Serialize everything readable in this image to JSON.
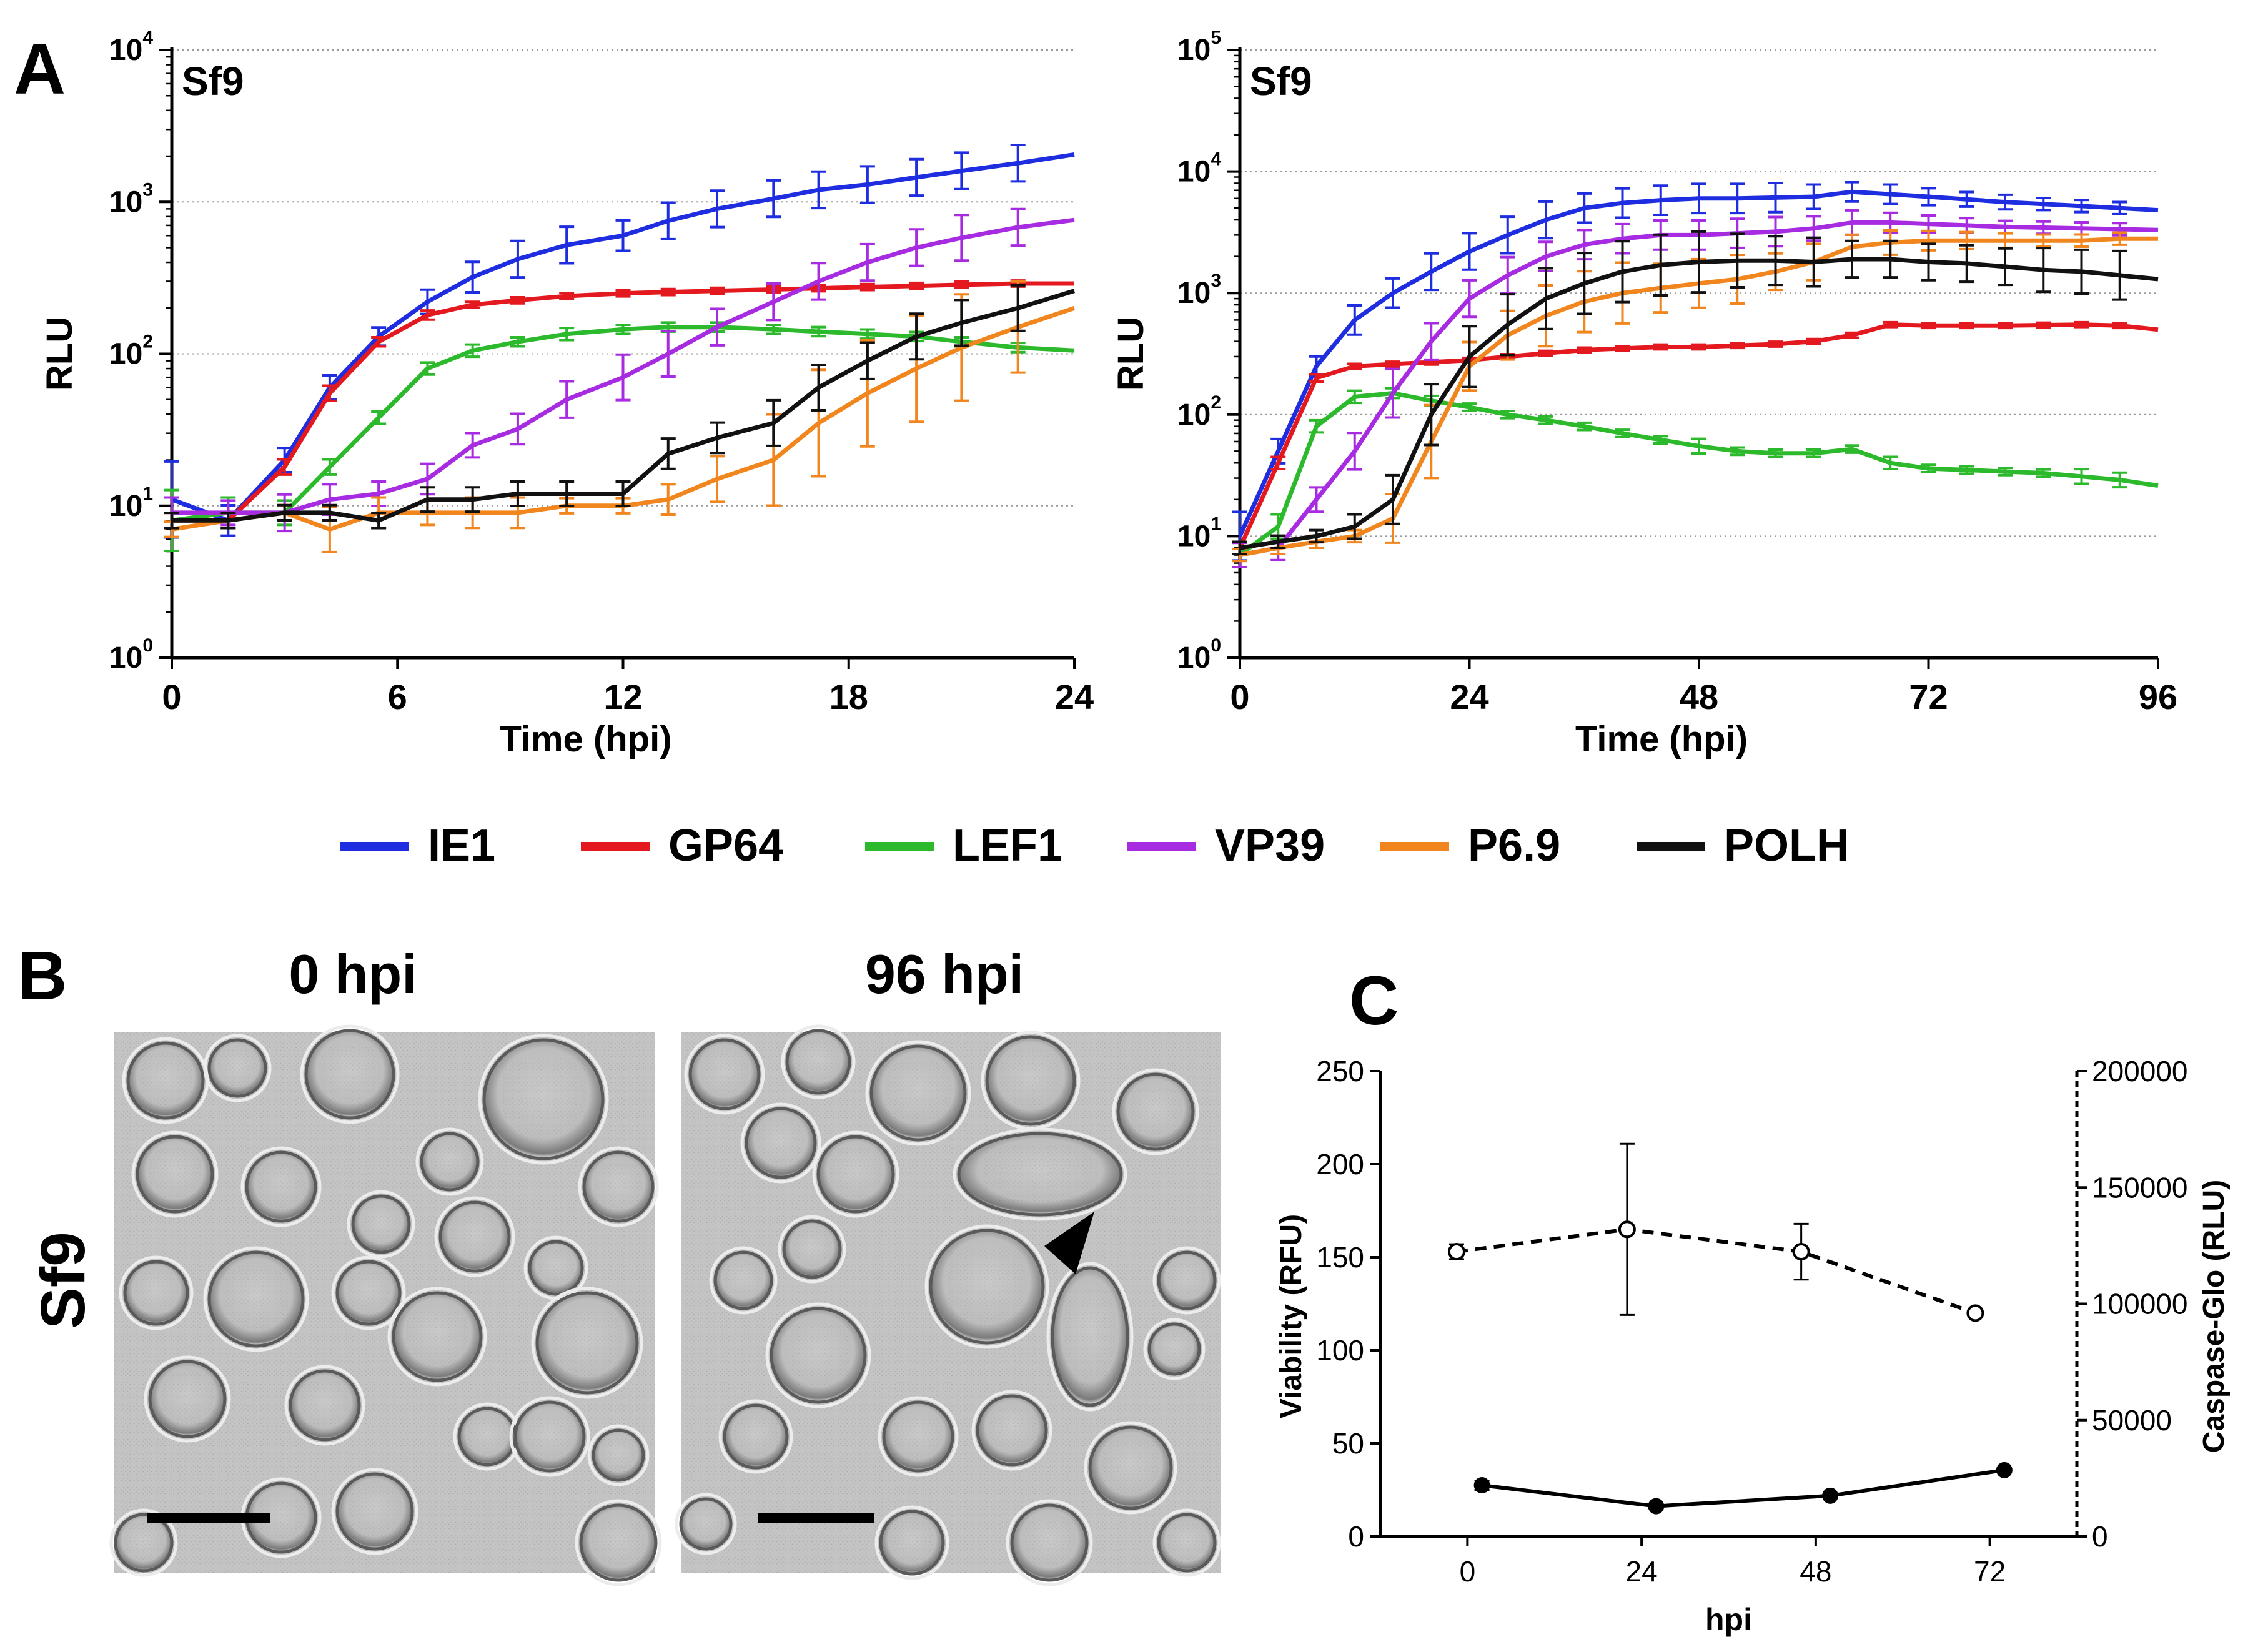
{
  "panel_labels": {
    "a": "A",
    "b": "B",
    "c": "C"
  },
  "legend": {
    "items": [
      {
        "name": "IE1",
        "color": "#1f2de0"
      },
      {
        "name": "GP64",
        "color": "#e3191f"
      },
      {
        "name": "LEF1",
        "color": "#2cba2c"
      },
      {
        "name": "VP39",
        "color": "#a72be0"
      },
      {
        "name": "P6.9",
        "color": "#f2861e"
      },
      {
        "name": "POLH",
        "color": "#111111"
      }
    ]
  },
  "panel_b": {
    "cell_line": "Sf9",
    "images": [
      {
        "label": "0 hpi"
      },
      {
        "label": "96 hpi"
      }
    ]
  },
  "chart_data": [
    {
      "id": "A-left",
      "type": "line",
      "title": "Sf9",
      "xlabel": "Time (hpi)",
      "ylabel": "RLU",
      "xlim": [
        0,
        24
      ],
      "ylim_log10": [
        0,
        4
      ],
      "yscale": "log",
      "xticks": [
        0,
        6,
        12,
        18,
        24
      ],
      "yticks": [
        {
          "base": "10",
          "exp": "0"
        },
        {
          "base": "10",
          "exp": "1"
        },
        {
          "base": "10",
          "exp": "2"
        },
        {
          "base": "10",
          "exp": "3"
        },
        {
          "base": "10",
          "exp": "4"
        }
      ],
      "grid": "horizontal-dotted",
      "x": [
        0,
        1.5,
        3,
        4.2,
        5.5,
        6.8,
        8,
        9.2,
        10.5,
        12,
        13.2,
        14.5,
        16,
        17.2,
        18.5,
        19.8,
        21,
        22.5,
        24
      ],
      "series": [
        {
          "name": "IE1",
          "values": [
            11,
            8,
            20,
            60,
            130,
            220,
            320,
            420,
            520,
            600,
            750,
            900,
            1050,
            1200,
            1300,
            1450,
            1600,
            1800,
            2050
          ],
          "err": [
            0.25,
            0.1,
            0.08,
            0.08,
            0.06,
            0.08,
            0.1,
            0.12,
            0.12,
            0.1,
            0.12,
            0.12,
            0.12,
            0.12,
            0.12,
            0.12,
            0.12,
            0.12,
            0
          ]
        },
        {
          "name": "GP64",
          "values": [
            8,
            8,
            18,
            55,
            120,
            180,
            210,
            225,
            240,
            250,
            255,
            260,
            265,
            270,
            275,
            280,
            285,
            290,
            290
          ],
          "err": [
            0.05,
            0.05,
            0.05,
            0.05,
            0.03,
            0.03,
            0.02,
            0.02,
            0.02,
            0.02,
            0.02,
            0.02,
            0.02,
            0.02,
            0.02,
            0.02,
            0.02,
            0.02,
            0
          ]
        },
        {
          "name": "LEF1",
          "values": [
            8,
            9,
            9,
            18,
            38,
            80,
            105,
            120,
            135,
            145,
            150,
            150,
            145,
            140,
            135,
            130,
            120,
            110,
            105
          ],
          "err": [
            0.2,
            0.1,
            0.08,
            0.05,
            0.04,
            0.04,
            0.04,
            0.03,
            0.04,
            0.03,
            0.03,
            0.03,
            0.03,
            0.03,
            0.03,
            0.03,
            0.03,
            0.03,
            0
          ]
        },
        {
          "name": "VP39",
          "values": [
            9,
            9,
            9,
            11,
            12,
            15,
            25,
            32,
            50,
            70,
            100,
            150,
            220,
            300,
            400,
            500,
            580,
            680,
            760
          ],
          "err": [
            0.1,
            0.08,
            0.12,
            0.1,
            0.08,
            0.1,
            0.08,
            0.1,
            0.12,
            0.15,
            0.15,
            0.12,
            0.12,
            0.12,
            0.12,
            0.12,
            0.15,
            0.12,
            0
          ]
        },
        {
          "name": "P6.9",
          "values": [
            7,
            8,
            9,
            7,
            9,
            9,
            9,
            9,
            10,
            10,
            11,
            15,
            20,
            35,
            55,
            80,
            110,
            150,
            200
          ],
          "err": [
            0.05,
            0.05,
            0.05,
            0.15,
            0.1,
            0.08,
            0.1,
            0.1,
            0.05,
            0.05,
            0.1,
            0.15,
            0.3,
            0.35,
            0.35,
            0.35,
            0.35,
            0.3,
            0
          ]
        },
        {
          "name": "POLH",
          "values": [
            8,
            8,
            9,
            9,
            8,
            11,
            11,
            12,
            12,
            12,
            22,
            28,
            35,
            60,
            90,
            130,
            160,
            200,
            260
          ],
          "err": [
            0.05,
            0.05,
            0.05,
            0.05,
            0.05,
            0.08,
            0.08,
            0.08,
            0.08,
            0.08,
            0.1,
            0.1,
            0.15,
            0.15,
            0.12,
            0.15,
            0.15,
            0.15,
            0
          ]
        }
      ]
    },
    {
      "id": "A-right",
      "type": "line",
      "title": "Sf9",
      "xlabel": "Time (hpi)",
      "ylabel": "RLU",
      "xlim": [
        0,
        96
      ],
      "ylim_log10": [
        0,
        5
      ],
      "yscale": "log",
      "xticks": [
        0,
        24,
        48,
        72,
        96
      ],
      "yticks": [
        {
          "base": "10",
          "exp": "0"
        },
        {
          "base": "10",
          "exp": "1"
        },
        {
          "base": "10",
          "exp": "2"
        },
        {
          "base": "10",
          "exp": "3"
        },
        {
          "base": "10",
          "exp": "4"
        },
        {
          "base": "10",
          "exp": "5"
        }
      ],
      "grid": "horizontal-dotted",
      "x": [
        0,
        4,
        8,
        12,
        16,
        20,
        24,
        28,
        32,
        36,
        40,
        44,
        48,
        52,
        56,
        60,
        64,
        68,
        72,
        76,
        80,
        84,
        88,
        92,
        96
      ],
      "series": [
        {
          "name": "IE1",
          "values": [
            10,
            50,
            250,
            600,
            1000,
            1500,
            2200,
            3000,
            4000,
            5000,
            5500,
            5800,
            6000,
            6000,
            6100,
            6200,
            6800,
            6500,
            6200,
            5900,
            5600,
            5400,
            5200,
            5000,
            4800
          ],
          "err": [
            0.2,
            0.1,
            0.08,
            0.12,
            0.12,
            0.15,
            0.15,
            0.15,
            0.15,
            0.12,
            0.12,
            0.12,
            0.12,
            0.12,
            0.12,
            0.1,
            0.08,
            0.08,
            0.07,
            0.06,
            0.06,
            0.05,
            0.05,
            0.05,
            0
          ]
        },
        {
          "name": "GP64",
          "values": [
            8,
            40,
            200,
            250,
            260,
            270,
            280,
            300,
            320,
            340,
            350,
            360,
            360,
            370,
            380,
            400,
            450,
            550,
            540,
            540,
            540,
            545,
            550,
            540,
            500
          ],
          "err": [
            0.05,
            0.05,
            0.03,
            0.02,
            0.02,
            0.02,
            0.02,
            0.02,
            0.02,
            0.02,
            0.02,
            0.02,
            0.02,
            0.02,
            0.02,
            0.02,
            0.02,
            0.02,
            0.02,
            0.02,
            0.02,
            0.02,
            0.02,
            0.02,
            0
          ]
        },
        {
          "name": "LEF1",
          "values": [
            7,
            12,
            80,
            140,
            150,
            130,
            115,
            100,
            90,
            80,
            70,
            62,
            55,
            50,
            48,
            48,
            52,
            40,
            36,
            35,
            34,
            33,
            31,
            29,
            26
          ],
          "err": [
            0.1,
            0.1,
            0.05,
            0.05,
            0.04,
            0.04,
            0.03,
            0.03,
            0.03,
            0.03,
            0.03,
            0.03,
            0.06,
            0.03,
            0.03,
            0.03,
            0.03,
            0.05,
            0.03,
            0.03,
            0.03,
            0.03,
            0.06,
            0.06,
            0
          ]
        },
        {
          "name": "VP39",
          "values": [
            7,
            8,
            20,
            50,
            150,
            400,
            900,
            1400,
            2000,
            2500,
            2800,
            3000,
            3000,
            3100,
            3200,
            3400,
            3800,
            3800,
            3700,
            3600,
            3500,
            3450,
            3400,
            3350,
            3300
          ],
          "err": [
            0.1,
            0.1,
            0.1,
            0.15,
            0.2,
            0.15,
            0.15,
            0.15,
            0.12,
            0.12,
            0.12,
            0.12,
            0.12,
            0.12,
            0.12,
            0.1,
            0.1,
            0.08,
            0.07,
            0.06,
            0.05,
            0.05,
            0.05,
            0.05,
            0
          ]
        },
        {
          "name": "P6.9",
          "values": [
            7,
            8,
            9,
            10,
            14,
            60,
            250,
            450,
            650,
            850,
            1000,
            1100,
            1200,
            1300,
            1500,
            1800,
            2400,
            2600,
            2700,
            2700,
            2700,
            2700,
            2700,
            2800,
            2800
          ],
          "err": [
            0.05,
            0.05,
            0.05,
            0.05,
            0.2,
            0.3,
            0.2,
            0.2,
            0.25,
            0.25,
            0.25,
            0.2,
            0.2,
            0.2,
            0.15,
            0.15,
            0.1,
            0.1,
            0.08,
            0.07,
            0.06,
            0.05,
            0.05,
            0.05,
            0
          ]
        },
        {
          "name": "POLH",
          "values": [
            8,
            9,
            10,
            12,
            20,
            100,
            300,
            550,
            900,
            1200,
            1500,
            1700,
            1800,
            1850,
            1850,
            1800,
            1900,
            1900,
            1800,
            1750,
            1650,
            1550,
            1500,
            1400,
            1300
          ],
          "err": [
            0.05,
            0.05,
            0.05,
            0.1,
            0.2,
            0.25,
            0.25,
            0.25,
            0.25,
            0.25,
            0.25,
            0.25,
            0.25,
            0.22,
            0.2,
            0.2,
            0.15,
            0.15,
            0.15,
            0.15,
            0.15,
            0.18,
            0.18,
            0.2,
            0
          ]
        }
      ]
    },
    {
      "id": "C",
      "type": "line",
      "xlabel": "hpi",
      "ylabel": "Viability (RFU)",
      "ylabel_right": "Caspase-Glo (RLU)",
      "xlim": [
        -12,
        84
      ],
      "ylim": [
        0,
        250
      ],
      "ylim_right": [
        0,
        200000
      ],
      "xticks": [
        0,
        24,
        48,
        72
      ],
      "yticks": [
        0,
        50,
        100,
        150,
        200,
        250
      ],
      "yticks_right": [
        0,
        50000,
        100000,
        150000,
        200000
      ],
      "series": [
        {
          "name": "Viability (RFU)",
          "axis": "left",
          "style": "dashed",
          "marker": "open-circle",
          "x": [
            -1.5,
            22,
            46,
            70
          ],
          "values": [
            153,
            165,
            153,
            120
          ],
          "err": [
            4,
            46,
            15,
            2
          ]
        },
        {
          "name": "Caspase-Glo (RLU)",
          "axis": "right",
          "style": "solid",
          "marker": "filled-circle",
          "x": [
            2,
            26,
            50,
            74
          ],
          "values": [
            22000,
            13000,
            17500,
            28500
          ],
          "err": [
            2000,
            1000,
            1000,
            800
          ]
        }
      ]
    }
  ]
}
